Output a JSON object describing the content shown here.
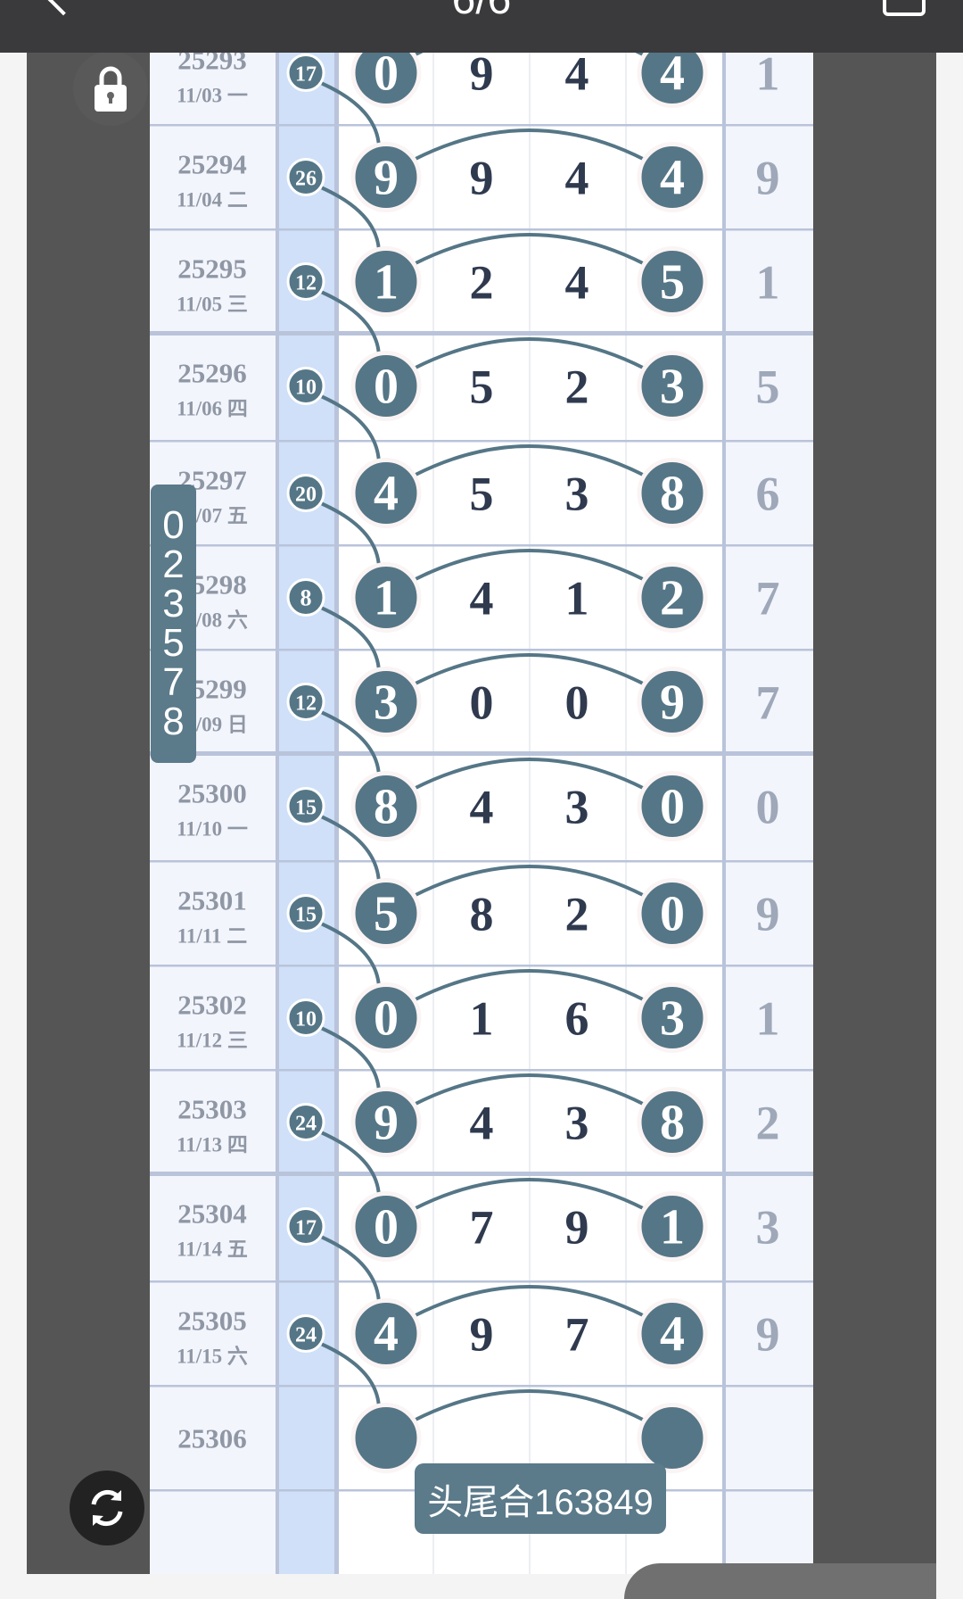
{
  "header": {
    "title": "6/6",
    "back_icon": "back-arrow-icon",
    "right_icon": "square-icon"
  },
  "colors": {
    "ball": "#557686",
    "sum_column": "#cfe0f8",
    "grid": "#b9c3da",
    "digit_text": "#2f3a4f",
    "period_text": "#8f97a5",
    "tail_text": "#9ea8b8"
  },
  "side_badge": {
    "digits": [
      "0",
      "2",
      "3",
      "5",
      "7",
      "8"
    ]
  },
  "rows": [
    {
      "period": "25293",
      "date": "11/03 一",
      "sum": "17",
      "digits": [
        "0",
        "9",
        "4",
        "4"
      ],
      "tail": "1"
    },
    {
      "period": "25294",
      "date": "11/04 二",
      "sum": "26",
      "digits": [
        "9",
        "9",
        "4",
        "4"
      ],
      "tail": "9"
    },
    {
      "period": "25295",
      "date": "11/05 三",
      "sum": "12",
      "digits": [
        "1",
        "2",
        "4",
        "5"
      ],
      "tail": "1"
    },
    {
      "period": "25296",
      "date": "11/06 四",
      "sum": "10",
      "digits": [
        "0",
        "5",
        "2",
        "3"
      ],
      "tail": "5"
    },
    {
      "period": "25297",
      "date": "11/07 五",
      "sum": "20",
      "digits": [
        "4",
        "5",
        "3",
        "8"
      ],
      "tail": "6"
    },
    {
      "period": "25298",
      "date": "11/08 六",
      "sum": "8",
      "digits": [
        "1",
        "4",
        "1",
        "2"
      ],
      "tail": "7"
    },
    {
      "period": "25299",
      "date": "11/09 日",
      "sum": "12",
      "digits": [
        "3",
        "0",
        "0",
        "9"
      ],
      "tail": "7"
    },
    {
      "period": "25300",
      "date": "11/10 一",
      "sum": "15",
      "digits": [
        "8",
        "4",
        "3",
        "0"
      ],
      "tail": "0"
    },
    {
      "period": "25301",
      "date": "11/11 二",
      "sum": "15",
      "digits": [
        "5",
        "8",
        "2",
        "0"
      ],
      "tail": "9"
    },
    {
      "period": "25302",
      "date": "11/12 三",
      "sum": "10",
      "digits": [
        "0",
        "1",
        "6",
        "3"
      ],
      "tail": "1"
    },
    {
      "period": "25303",
      "date": "11/13 四",
      "sum": "24",
      "digits": [
        "9",
        "4",
        "3",
        "8"
      ],
      "tail": "2"
    },
    {
      "period": "25304",
      "date": "11/14 五",
      "sum": "17",
      "digits": [
        "0",
        "7",
        "9",
        "1"
      ],
      "tail": "3"
    },
    {
      "period": "25305",
      "date": "11/15 六",
      "sum": "24",
      "digits": [
        "4",
        "9",
        "7",
        "4"
      ],
      "tail": "9"
    },
    {
      "period": "25306",
      "date": "",
      "sum": "",
      "digits": [
        "",
        "",
        "",
        ""
      ],
      "tail": ""
    }
  ],
  "popup": {
    "text": "头尾合163849"
  },
  "buttons": {
    "lock_icon": "lock-icon",
    "refresh_icon": "refresh-icon"
  }
}
